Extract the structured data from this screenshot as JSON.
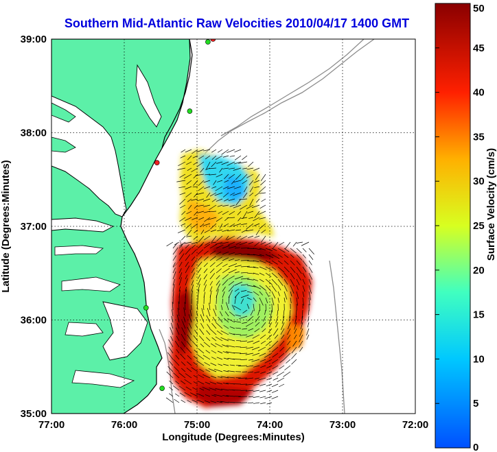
{
  "title": "Southern Mid-Atlantic Raw Velocities 2010/04/17 1400 GMT",
  "xlabel": "Longitude (Degrees:Minutes)",
  "ylabel": "Latitude (Degrees:Minutes)",
  "colorbar": {
    "label": "Surface Velocity (cm/s)",
    "min": 0,
    "max": 50,
    "ticks": [
      "0",
      "5",
      "10",
      "15",
      "20",
      "25",
      "30",
      "35",
      "40",
      "45",
      "50"
    ]
  },
  "axes": {
    "lon_range": [
      -77,
      -72
    ],
    "lat_range": [
      35,
      39
    ],
    "x_ticks": [
      {
        "value": -77,
        "label": "77:00"
      },
      {
        "value": -76,
        "label": "76:00"
      },
      {
        "value": -75,
        "label": "75:00"
      },
      {
        "value": -74,
        "label": "74:00"
      },
      {
        "value": -73,
        "label": "73:00"
      },
      {
        "value": -72,
        "label": "72:00"
      }
    ],
    "y_ticks": [
      {
        "value": 35,
        "label": "35:00"
      },
      {
        "value": 36,
        "label": "36:00"
      },
      {
        "value": 37,
        "label": "37:00"
      },
      {
        "value": 38,
        "label": "38:00"
      },
      {
        "value": 39,
        "label": "39:00"
      }
    ],
    "grid": true
  },
  "colors": {
    "land": "#5cf0a8",
    "coastline": "#000000",
    "bathymetry": "#8c8c8c",
    "title": "#0000dd",
    "grid": "#000000",
    "station_active": "#22dd22",
    "station_inactive": "#ee2222"
  },
  "stations": [
    {
      "lon": -74.78,
      "lat": 39.0,
      "status": "inactive"
    },
    {
      "lon": -74.85,
      "lat": 38.97,
      "status": "active"
    },
    {
      "lon": -75.1,
      "lat": 38.23,
      "status": "active"
    },
    {
      "lon": -75.55,
      "lat": 37.68,
      "status": "inactive"
    },
    {
      "lon": -75.7,
      "lat": 36.13,
      "status": "active"
    },
    {
      "lon": -75.48,
      "lat": 35.27,
      "status": "active"
    }
  ],
  "icons": {
    "station": "circle-marker",
    "vector": "arrow"
  }
}
